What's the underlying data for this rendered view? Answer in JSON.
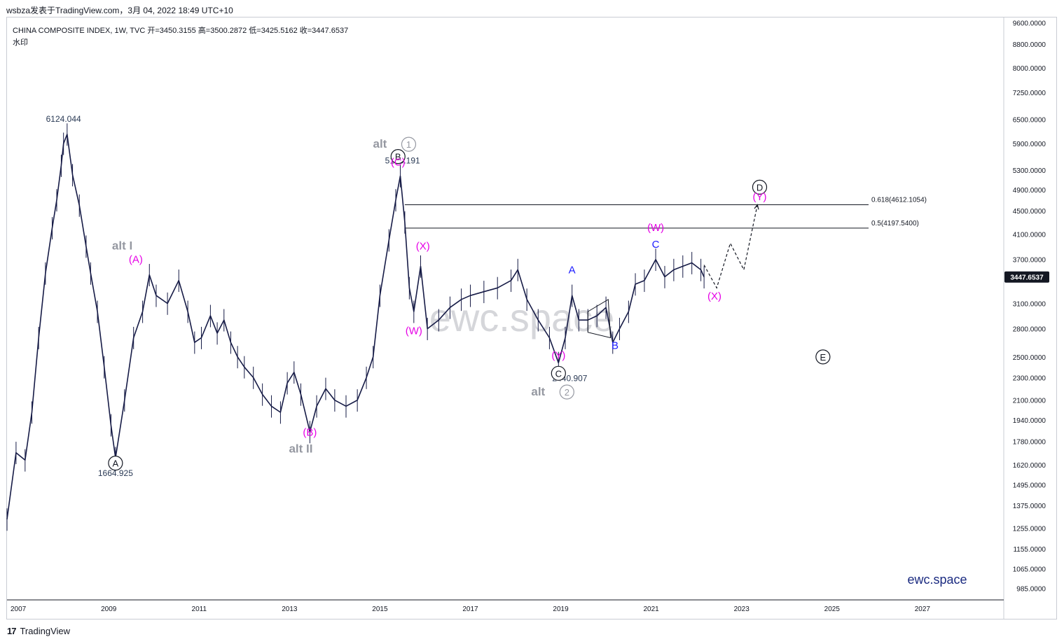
{
  "header": {
    "snapshot_text": "wsbza发表于TradingView.com，3月 04, 2022 18:49 UTC+10"
  },
  "legend": {
    "line1": "CHINA COMPOSITE INDEX, 1W, TVC  开=3450.3155  高=3500.2872  低=3425.5162  收=3447.6537",
    "line2": "水印"
  },
  "footer": {
    "brand": "TradingView"
  },
  "chart_data": {
    "type": "line",
    "title": "CHINA COMPOSITE INDEX, 1W, TVC",
    "symbol_ohlc": {
      "open": 3450.3155,
      "high": 3500.2872,
      "low": 3425.5162,
      "close": 3447.6537
    },
    "y_scale": "log",
    "ylim": [
      940,
      9800
    ],
    "xlim": [
      2006.75,
      2028.8
    ],
    "x_ticks": [
      "2007",
      "2009",
      "2011",
      "2013",
      "2015",
      "2017",
      "2019",
      "2021",
      "2023",
      "2025",
      "2027"
    ],
    "y_ticks": [
      "9600.0000",
      "8800.0000",
      "8000.0000",
      "7250.0000",
      "6500.0000",
      "5900.0000",
      "5300.0000",
      "4900.0000",
      "4500.0000",
      "4100.0000",
      "3700.0000",
      "3100.0000",
      "2800.0000",
      "2500.0000",
      "2300.0000",
      "2100.0000",
      "1940.0000",
      "1780.0000",
      "1620.0000",
      "1495.0000",
      "1375.0000",
      "1255.0000",
      "1155.0000",
      "1065.0000",
      "985.0000"
    ],
    "last_price_label": "3447.6537",
    "series": [
      {
        "values": [
          [
            2006.75,
            1300
          ],
          [
            2006.95,
            1700
          ],
          [
            2007.15,
            1650
          ],
          [
            2007.3,
            2000
          ],
          [
            2007.45,
            2700
          ],
          [
            2007.6,
            3500
          ],
          [
            2007.75,
            4200
          ],
          [
            2007.85,
            4700
          ],
          [
            2007.95,
            5400
          ],
          [
            2008.0,
            5900
          ],
          [
            2008.08,
            6124
          ],
          [
            2008.2,
            5200
          ],
          [
            2008.35,
            4600
          ],
          [
            2008.5,
            3900
          ],
          [
            2008.6,
            3500
          ],
          [
            2008.75,
            3000
          ],
          [
            2008.9,
            2400
          ],
          [
            2009.05,
            1900
          ],
          [
            2009.15,
            1665
          ],
          [
            2009.35,
            2100
          ],
          [
            2009.55,
            2700
          ],
          [
            2009.75,
            3000
          ],
          [
            2009.9,
            3478
          ],
          [
            2010.05,
            3200
          ],
          [
            2010.3,
            3100
          ],
          [
            2010.55,
            3400
          ],
          [
            2010.75,
            3000
          ],
          [
            2010.9,
            2650
          ],
          [
            2011.05,
            2700
          ],
          [
            2011.25,
            2950
          ],
          [
            2011.4,
            2750
          ],
          [
            2011.55,
            2900
          ],
          [
            2011.7,
            2650
          ],
          [
            2011.85,
            2500
          ],
          [
            2012.0,
            2400
          ],
          [
            2012.2,
            2300
          ],
          [
            2012.4,
            2150
          ],
          [
            2012.6,
            2050
          ],
          [
            2012.8,
            2000
          ],
          [
            2012.95,
            2250
          ],
          [
            2013.1,
            2350
          ],
          [
            2013.25,
            2150
          ],
          [
            2013.45,
            1849
          ],
          [
            2013.6,
            2050
          ],
          [
            2013.8,
            2200
          ],
          [
            2014.0,
            2100
          ],
          [
            2014.25,
            2050
          ],
          [
            2014.5,
            2100
          ],
          [
            2014.7,
            2300
          ],
          [
            2014.85,
            2500
          ],
          [
            2015.0,
            3200
          ],
          [
            2015.2,
            4000
          ],
          [
            2015.35,
            4700
          ],
          [
            2015.45,
            5178
          ],
          [
            2015.55,
            4300
          ],
          [
            2015.65,
            3300
          ],
          [
            2015.75,
            3000
          ],
          [
            2015.9,
            3600
          ],
          [
            2016.05,
            2800
          ],
          [
            2016.3,
            2900
          ],
          [
            2016.55,
            3050
          ],
          [
            2016.8,
            3150
          ],
          [
            2017.0,
            3200
          ],
          [
            2017.3,
            3250
          ],
          [
            2017.6,
            3300
          ],
          [
            2017.9,
            3400
          ],
          [
            2018.05,
            3550
          ],
          [
            2018.25,
            3150
          ],
          [
            2018.5,
            2900
          ],
          [
            2018.75,
            2700
          ],
          [
            2018.95,
            2441
          ],
          [
            2019.1,
            2700
          ],
          [
            2019.25,
            3200
          ],
          [
            2019.4,
            2900
          ],
          [
            2019.6,
            2900
          ],
          [
            2019.8,
            2950
          ],
          [
            2020.0,
            3050
          ],
          [
            2020.15,
            2650
          ],
          [
            2020.3,
            2800
          ],
          [
            2020.5,
            3000
          ],
          [
            2020.65,
            3350
          ],
          [
            2020.85,
            3400
          ],
          [
            2021.1,
            3700
          ],
          [
            2021.3,
            3450
          ],
          [
            2021.5,
            3550
          ],
          [
            2021.7,
            3600
          ],
          [
            2021.9,
            3650
          ],
          [
            2022.1,
            3550
          ],
          [
            2022.17,
            3448
          ]
        ]
      },
      {
        "name": "projection",
        "values": [
          [
            2022.17,
            3620
          ],
          [
            2022.45,
            3300
          ],
          [
            2022.75,
            3950
          ],
          [
            2023.05,
            3550
          ],
          [
            2023.35,
            4612
          ]
        ]
      }
    ],
    "horizontal_levels": [
      {
        "label": "0.618(4612.1054)",
        "value": 4612.1054
      },
      {
        "label": "0.5(4197.5400)",
        "value": 4197.54
      }
    ],
    "annotations": [
      {
        "text": "6124.044",
        "x": 2008.0,
        "y": 6124.044,
        "color": "#2a3a55",
        "kind": "price"
      },
      {
        "text": "1664.925",
        "x": 2009.15,
        "y": 1664.925,
        "color": "#2a3a55",
        "kind": "price"
      },
      {
        "text": "5178.191",
        "x": 2015.5,
        "y": 5178.191,
        "color": "#2a3a55",
        "kind": "price"
      },
      {
        "text": "2440.907",
        "x": 2019.2,
        "y": 2440.907,
        "color": "#2a3a55",
        "kind": "price"
      },
      {
        "text": "A",
        "x": 2009.15,
        "y": 1630,
        "color": "#131722",
        "kind": "circle"
      },
      {
        "text": "B",
        "x": 2015.4,
        "y": 5600,
        "color": "#131722",
        "kind": "circle"
      },
      {
        "text": "C",
        "x": 2018.95,
        "y": 2340,
        "color": "#131722",
        "kind": "circle"
      },
      {
        "text": "D",
        "x": 2023.4,
        "y": 4950,
        "color": "#131722",
        "kind": "circle"
      },
      {
        "text": "E",
        "x": 2024.8,
        "y": 2500,
        "color": "#131722",
        "kind": "circle"
      },
      {
        "text": "(A)",
        "x": 2009.6,
        "y": 3650,
        "color": "#e600e6",
        "kind": "label"
      },
      {
        "text": "(B)",
        "x": 2013.45,
        "y": 1820,
        "color": "#e600e6",
        "kind": "label"
      },
      {
        "text": "(C)",
        "x": 2015.4,
        "y": 5400,
        "color": "#e600e6",
        "kind": "label"
      },
      {
        "text": "(W)",
        "x": 2015.75,
        "y": 2740,
        "color": "#e600e6",
        "kind": "label"
      },
      {
        "text": "(X)",
        "x": 2015.95,
        "y": 3850,
        "color": "#e600e6",
        "kind": "label"
      },
      {
        "text": "(Y)",
        "x": 2018.95,
        "y": 2480,
        "color": "#e600e6",
        "kind": "label"
      },
      {
        "text": "(W)",
        "x": 2021.1,
        "y": 4150,
        "color": "#e600e6",
        "kind": "label"
      },
      {
        "text": "(X)",
        "x": 2022.4,
        "y": 3150,
        "color": "#e600e6",
        "kind": "label"
      },
      {
        "text": "(Y)",
        "x": 2023.4,
        "y": 4700,
        "color": "#e600e6",
        "kind": "label"
      },
      {
        "text": "A",
        "x": 2019.25,
        "y": 3500,
        "color": "#1a1aff",
        "kind": "label"
      },
      {
        "text": "B",
        "x": 2020.2,
        "y": 2580,
        "color": "#1a1aff",
        "kind": "label"
      },
      {
        "text": "C",
        "x": 2021.1,
        "y": 3880,
        "color": "#1a1aff",
        "kind": "label"
      },
      {
        "text": "alt I",
        "x": 2009.3,
        "y": 3850,
        "color": "#9598a1",
        "kind": "alt"
      },
      {
        "text": "alt II",
        "x": 2013.25,
        "y": 1700,
        "color": "#9598a1",
        "kind": "alt"
      },
      {
        "text": "alt",
        "x": 2015.0,
        "y": 5800,
        "color": "#9598a1",
        "kind": "alt"
      },
      {
        "text": "alt",
        "x": 2018.5,
        "y": 2140,
        "color": "#9598a1",
        "kind": "alt"
      }
    ],
    "alt_circles": [
      {
        "text": "1",
        "x": 2015.45,
        "y": 5800
      },
      {
        "text": "2",
        "x": 2018.95,
        "y": 2140
      }
    ],
    "watermark": "ewc.space",
    "brand_label": "ewc.space"
  }
}
